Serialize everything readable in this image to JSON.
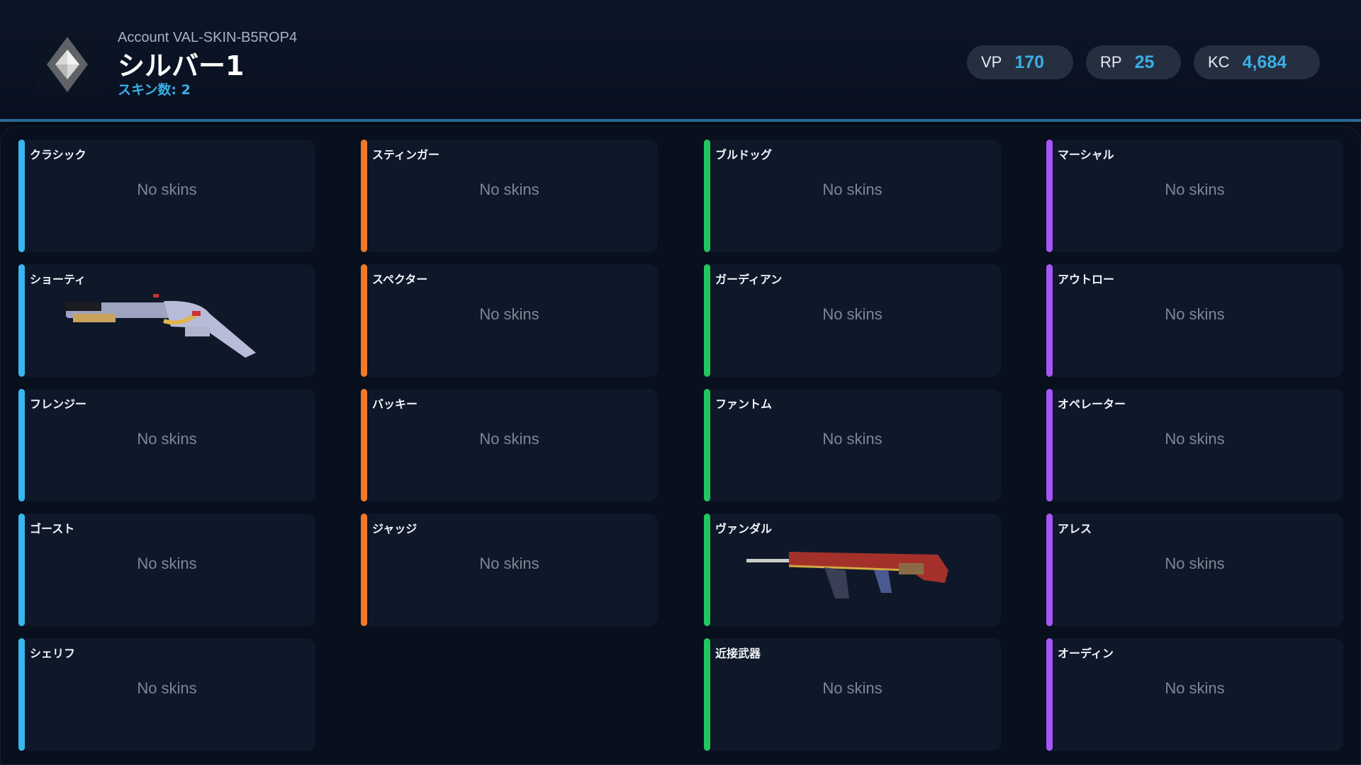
{
  "header": {
    "account": "Account VAL-SKIN-B5ROP4",
    "rank": "シルバー1",
    "skin_count": "スキン数: 2",
    "rank_icon": "silver-rank-diamond-icon"
  },
  "currencies": [
    {
      "label": "VP",
      "value": "170"
    },
    {
      "label": "RP",
      "value": "25"
    },
    {
      "label": "KC",
      "value": "4,684"
    }
  ],
  "colors": {
    "sidearm": "#38b6f0",
    "smg_shotgun": "#f07a28",
    "rifle": "#22c55e",
    "sniper_heavy": "#a855f7",
    "accent": "#3aaee6"
  },
  "empty_label": "No skins",
  "columns": [
    {
      "color": "#38b6f0",
      "weapons": [
        {
          "name": "クラシック",
          "skin": false
        },
        {
          "name": "ショーティ",
          "skin": true
        },
        {
          "name": "フレンジー",
          "skin": false
        },
        {
          "name": "ゴースト",
          "skin": false
        },
        {
          "name": "シェリフ",
          "skin": false
        }
      ]
    },
    {
      "color": "#f07a28",
      "weapons": [
        {
          "name": "スティンガー",
          "skin": false
        },
        {
          "name": "スペクター",
          "skin": false
        },
        {
          "name": "バッキー",
          "skin": false
        },
        {
          "name": "ジャッジ",
          "skin": false
        }
      ]
    },
    {
      "color": "#22c55e",
      "weapons": [
        {
          "name": "ブルドッグ",
          "skin": false
        },
        {
          "name": "ガーディアン",
          "skin": false
        },
        {
          "name": "ファントム",
          "skin": false
        },
        {
          "name": "ヴァンダル",
          "skin": true
        },
        {
          "name": "近接武器",
          "skin": false
        }
      ]
    },
    {
      "color": "#a855f7",
      "weapons": [
        {
          "name": "マーシャル",
          "skin": false
        },
        {
          "name": "アウトロー",
          "skin": false
        },
        {
          "name": "オペレーター",
          "skin": false
        },
        {
          "name": "アレス",
          "skin": false
        },
        {
          "name": "オーディン",
          "skin": false
        }
      ]
    }
  ]
}
